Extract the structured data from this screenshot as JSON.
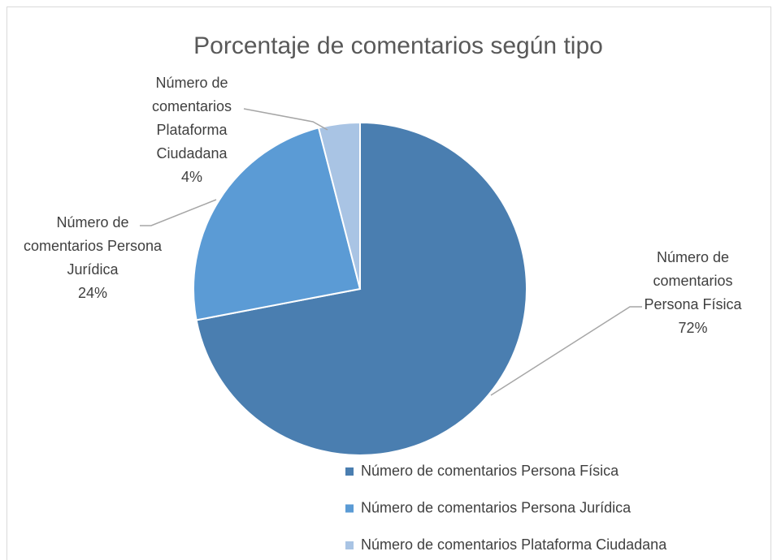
{
  "chart_data": {
    "type": "pie",
    "title": "Porcentaje de comentarios según tipo",
    "categories": [
      "Número de comentarios Persona Física",
      "Número de comentarios Persona Jurídica",
      "Número de comentarios Plataforma Ciudadana"
    ],
    "values": [
      72,
      24,
      4
    ],
    "value_labels": [
      "72%",
      "24%",
      "4%"
    ],
    "colors": [
      "#4a7eb0",
      "#5b9bd5",
      "#a9c4e4"
    ],
    "legend": "bottom"
  }
}
